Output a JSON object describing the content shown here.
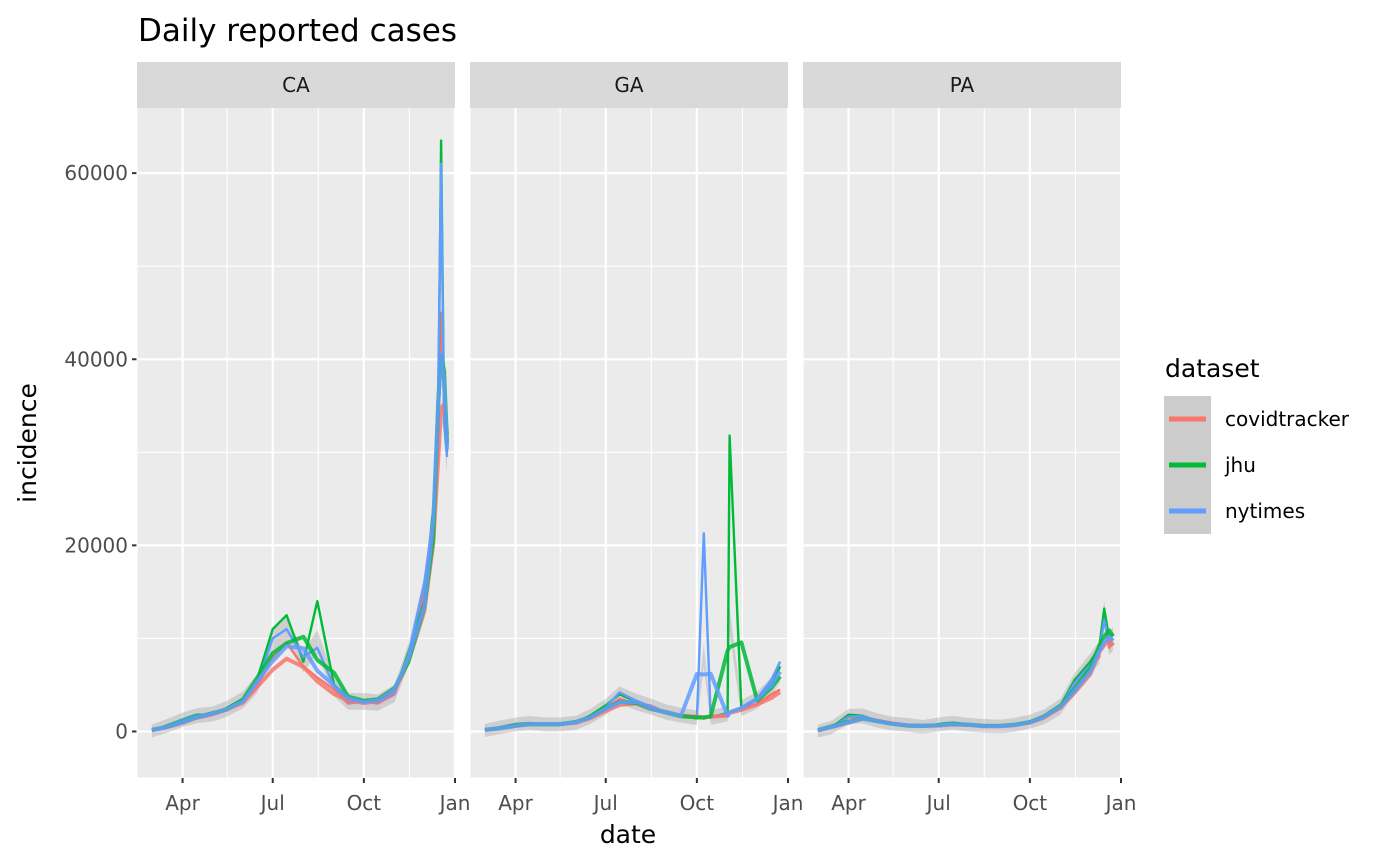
{
  "chart_data": {
    "type": "line",
    "title": "Daily reported cases",
    "xlabel": "date",
    "ylabel": "incidence",
    "x_ticks": [
      "Apr",
      "Jul",
      "Oct",
      "Jan"
    ],
    "y_ticks": [
      0,
      20000,
      40000,
      60000
    ],
    "xlim": [
      "2020-02-15",
      "2021-01-01"
    ],
    "ylim": [
      -5000,
      67000
    ],
    "grid": true,
    "legend": {
      "title": "dataset",
      "position": "right",
      "entries": [
        "covidtracker",
        "jhu",
        "nytimes"
      ]
    },
    "series_colors": {
      "covidtracker": "#f8766d",
      "jhu": "#00ba38",
      "nytimes": "#619cff"
    },
    "smoothing": "loess with grey confidence band",
    "panels": [
      {
        "name": "CA",
        "x": [
          "2020-03-01",
          "2020-03-15",
          "2020-04-01",
          "2020-04-15",
          "2020-05-01",
          "2020-05-15",
          "2020-06-01",
          "2020-06-15",
          "2020-07-01",
          "2020-07-15",
          "2020-08-01",
          "2020-08-15",
          "2020-09-01",
          "2020-09-15",
          "2020-10-01",
          "2020-10-15",
          "2020-11-01",
          "2020-11-15",
          "2020-12-01",
          "2020-12-10",
          "2020-12-15",
          "2020-12-18",
          "2020-12-21",
          "2020-12-24"
        ],
        "series": [
          {
            "name": "covidtracker",
            "values": [
              50,
              500,
              1200,
              1600,
              1900,
              2300,
              3300,
              4800,
              8000,
              9500,
              7000,
              5800,
              4500,
              3000,
              3200,
              3000,
              4000,
              8000,
              15000,
              22000,
              30000,
              45000,
              35000,
              31000
            ]
          },
          {
            "name": "jhu",
            "values": [
              50,
              600,
              1300,
              1800,
              1800,
              2500,
              3500,
              5500,
              11000,
              12500,
              7500,
              14000,
              5000,
              3500,
              3300,
              3200,
              4200,
              8500,
              14000,
              24000,
              33000,
              63500,
              34000,
              30000
            ]
          },
          {
            "name": "nytimes",
            "values": [
              50,
              550,
              1250,
              1700,
              1900,
              2400,
              3400,
              5000,
              10000,
              11000,
              8000,
              9000,
              4800,
              3200,
              3200,
              3100,
              4100,
              8200,
              16000,
              23000,
              37000,
              61000,
              33000,
              29500
            ]
          }
        ]
      },
      {
        "name": "GA",
        "x": [
          "2020-03-01",
          "2020-03-15",
          "2020-04-01",
          "2020-04-15",
          "2020-05-01",
          "2020-05-15",
          "2020-06-01",
          "2020-06-15",
          "2020-07-01",
          "2020-07-15",
          "2020-08-01",
          "2020-08-15",
          "2020-09-01",
          "2020-09-15",
          "2020-10-01",
          "2020-10-08",
          "2020-10-15",
          "2020-11-01",
          "2020-11-03",
          "2020-11-15",
          "2020-12-01",
          "2020-12-15",
          "2020-12-24"
        ],
        "series": [
          {
            "name": "covidtracker",
            "values": [
              100,
              400,
              700,
              900,
              800,
              700,
              900,
              1500,
              2500,
              3500,
              3000,
              2800,
              2000,
              1800,
              1500,
              1600,
              1500,
              1800,
              2000,
              2400,
              3000,
              4000,
              4500
            ]
          },
          {
            "name": "jhu",
            "values": [
              100,
              450,
              800,
              900,
              700,
              800,
              900,
              1700,
              2800,
              4000,
              3200,
              2600,
              2100,
              1700,
              1400,
              1600,
              1500,
              2000,
              31800,
              2500,
              3500,
              5000,
              7000
            ]
          },
          {
            "name": "nytimes",
            "values": [
              100,
              420,
              750,
              900,
              750,
              750,
              950,
              1600,
              2600,
              4200,
              3300,
              2700,
              2050,
              1750,
              1500,
              21300,
              1500,
              1900,
              2000,
              2600,
              3600,
              5500,
              7500
            ]
          }
        ]
      },
      {
        "name": "PA",
        "x": [
          "2020-03-01",
          "2020-03-15",
          "2020-04-01",
          "2020-04-15",
          "2020-05-01",
          "2020-05-15",
          "2020-06-01",
          "2020-06-15",
          "2020-07-01",
          "2020-07-15",
          "2020-08-01",
          "2020-08-15",
          "2020-09-01",
          "2020-09-15",
          "2020-10-01",
          "2020-10-15",
          "2020-11-01",
          "2020-11-15",
          "2020-12-01",
          "2020-12-10",
          "2020-12-15",
          "2020-12-20",
          "2020-12-24"
        ],
        "series": [
          {
            "name": "covidtracker",
            "values": [
              50,
              400,
              1500,
              1600,
              1200,
              900,
              700,
              500,
              700,
              900,
              700,
              600,
              500,
              700,
              1000,
              1500,
              2500,
              5000,
              7000,
              8000,
              12500,
              9000,
              9500
            ]
          },
          {
            "name": "jhu",
            "values": [
              50,
              450,
              1800,
              1700,
              1100,
              800,
              700,
              500,
              800,
              950,
              750,
              600,
              550,
              700,
              1100,
              1600,
              2800,
              5500,
              7500,
              9000,
              13200,
              10000,
              10500
            ]
          },
          {
            "name": "nytimes",
            "values": [
              50,
              420,
              1600,
              1650,
              1150,
              850,
              700,
              500,
              750,
              920,
              720,
              600,
              520,
              700,
              1050,
              1550,
              2700,
              5200,
              7200,
              8500,
              12000,
              9500,
              10000
            ]
          }
        ]
      }
    ]
  }
}
